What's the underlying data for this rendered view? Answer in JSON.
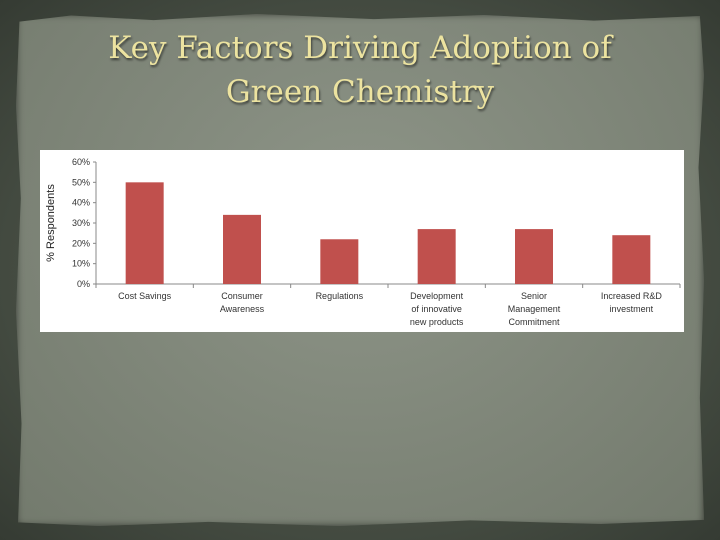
{
  "slide": {
    "title_line1": "Key Factors Driving Adoption of",
    "title_line2": "Green Chemistry"
  },
  "colors": {
    "bar": "#c0504d",
    "title": "#ece3a0"
  },
  "chart_data": {
    "type": "bar",
    "title": "",
    "xlabel": "",
    "ylabel": "% Respondents",
    "ylim": [
      0,
      60
    ],
    "yticks": [
      "0%",
      "10%",
      "20%",
      "30%",
      "40%",
      "50%",
      "60%"
    ],
    "grid": false,
    "categories": [
      [
        "Cost Savings"
      ],
      [
        "Consumer",
        "Awareness"
      ],
      [
        "Regulations"
      ],
      [
        "Development",
        "of innovative",
        "new products"
      ],
      [
        "Senior",
        "Management",
        "Commitment"
      ],
      [
        "Increased R&D",
        "investment"
      ]
    ],
    "values": [
      50,
      34,
      22,
      27,
      27,
      24
    ]
  }
}
